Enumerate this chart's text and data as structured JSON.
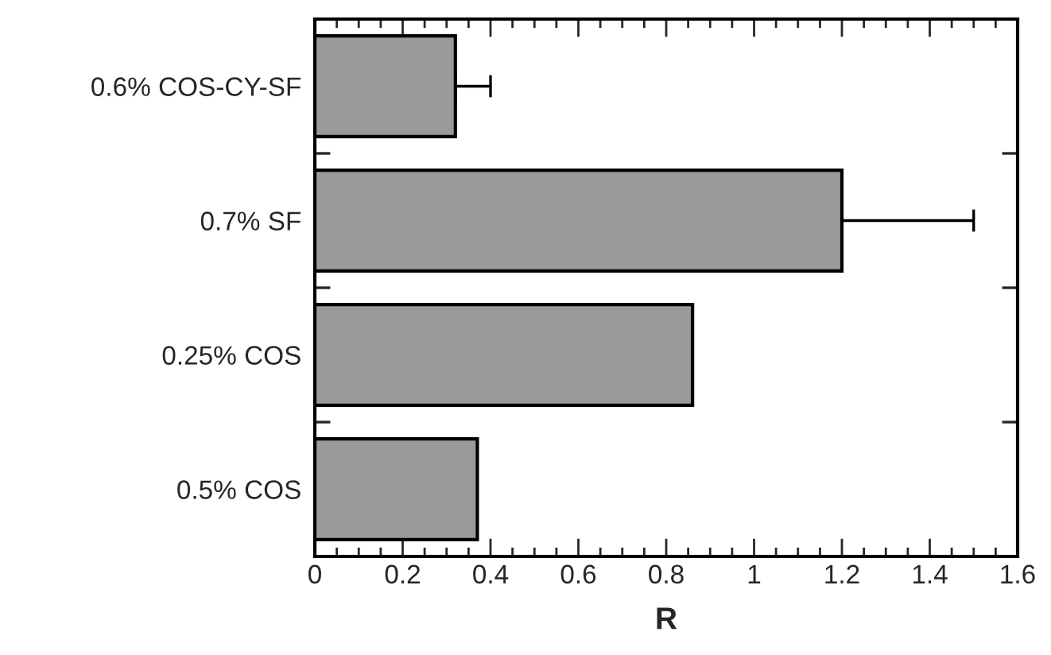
{
  "chart_data": {
    "type": "bar",
    "orientation": "horizontal",
    "xlabel": "R",
    "categories": [
      "0.6% COS-CY-SF",
      "0.7% SF",
      "0.25% COS",
      "0.5% COS"
    ],
    "values": [
      0.32,
      1.2,
      0.86,
      0.37
    ],
    "errors": [
      [
        0.32,
        0.4
      ],
      [
        1.2,
        1.5
      ],
      null,
      null
    ],
    "color": "#9a9a9a",
    "xlim": [
      0,
      1.6
    ],
    "xticks": [
      0,
      0.2,
      0.4,
      0.6,
      0.8,
      1,
      1.2,
      1.4,
      1.6
    ],
    "grid": false,
    "legend": false
  }
}
